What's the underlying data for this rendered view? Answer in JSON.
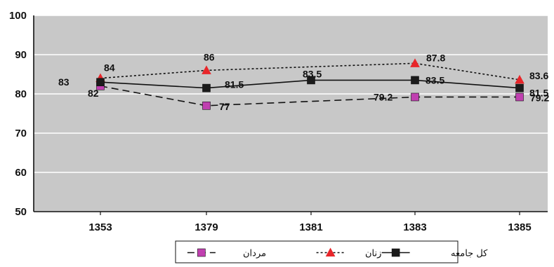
{
  "chart_data": {
    "type": "line",
    "categories": [
      "1353",
      "1379",
      "1381",
      "1383",
      "1385"
    ],
    "ylim": [
      50,
      100
    ],
    "yticks": [
      50,
      60,
      70,
      80,
      90,
      100
    ],
    "grid": true,
    "legend_position": "bottom",
    "series": [
      {
        "name": "کل جامعه",
        "values": [
          83,
          81.5,
          83.5,
          83.5,
          81.5
        ],
        "labels": [
          "83",
          "81.5",
          "83.5",
          "83.5",
          "81.5"
        ],
        "color": "#111111",
        "marker": "square",
        "marker_color": "#1b1b1b",
        "dash": "solid"
      },
      {
        "name": "زنان",
        "values": [
          84,
          86,
          null,
          87.8,
          83.6
        ],
        "labels": [
          "84",
          "86",
          "",
          "87.8",
          "83.6"
        ],
        "color": "#111111",
        "marker": "triangle",
        "marker_color": "#e8262a",
        "dash": "dotted"
      },
      {
        "name": "مردان",
        "values": [
          82,
          77,
          null,
          79.2,
          79.2
        ],
        "labels": [
          "82",
          "77",
          "",
          "79.2",
          "79.2"
        ],
        "color": "#111111",
        "marker": "square",
        "marker_color": "#c040b0",
        "dash": "dashed"
      }
    ]
  },
  "colors": {
    "plot_background": "#c8c8c8",
    "gridline": "#ffffff"
  }
}
